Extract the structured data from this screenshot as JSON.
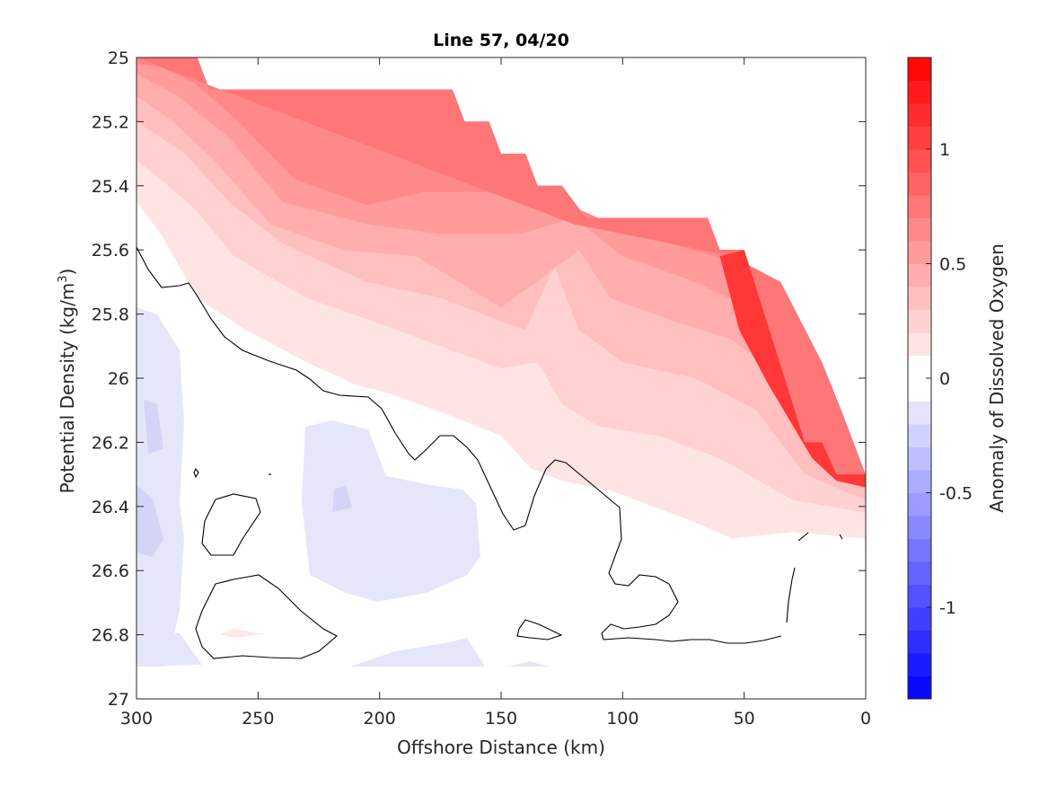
{
  "chart_data": {
    "type": "heatmap",
    "title": "Line 57, 04/20",
    "xlabel": "Offshore Distance (km)",
    "ylabel_main": "Potential Density (kg/m",
    "ylabel_sup": "3",
    "ylabel_close": ")",
    "xlim": [
      300,
      0
    ],
    "ylim": [
      25,
      27
    ],
    "y_reversed": true,
    "x_ticks": [
      "300",
      "250",
      "200",
      "150",
      "100",
      "50",
      "0"
    ],
    "y_ticks": [
      "25",
      "25.2",
      "25.4",
      "25.6",
      "25.8",
      "26",
      "26.2",
      "26.4",
      "26.6",
      "26.8",
      "27"
    ],
    "colorbar": {
      "label": "Anomaly of Dissolved Oxygen",
      "range": [
        -1.4,
        1.4
      ],
      "levels_step": 0.1,
      "ticks": [
        "1",
        "0.5",
        "0",
        "-0.5",
        "-1"
      ],
      "colormap": "blue-white-red"
    },
    "zero_contour": "black",
    "surface_boundary": [
      [
        300,
        25.0
      ],
      [
        275,
        25.0
      ],
      [
        270,
        25.1
      ],
      [
        170,
        25.1
      ],
      [
        165,
        25.2
      ],
      [
        155,
        25.2
      ],
      [
        150,
        25.3
      ],
      [
        140,
        25.3
      ],
      [
        135,
        25.4
      ],
      [
        125,
        25.4
      ],
      [
        115,
        25.5
      ],
      [
        65,
        25.5
      ],
      [
        60,
        25.6
      ],
      [
        50,
        25.6
      ],
      [
        25,
        26.2
      ],
      [
        18,
        26.2
      ],
      [
        12,
        26.3
      ],
      [
        0,
        26.3
      ]
    ]
  }
}
